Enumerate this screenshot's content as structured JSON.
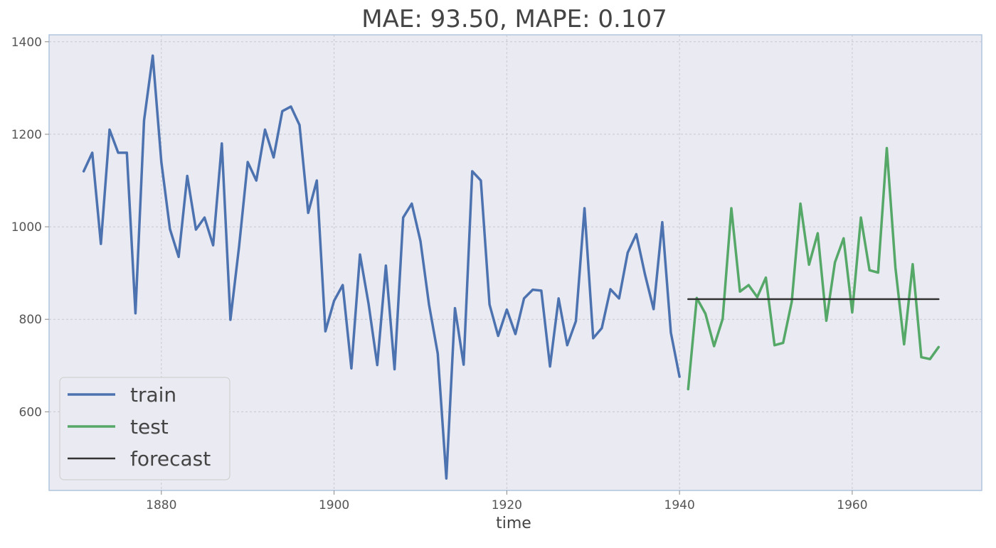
{
  "chart_data": {
    "type": "line",
    "title": "MAE: 93.50, MAPE: 0.107",
    "xlabel": "time",
    "ylabel": "",
    "xlim": [
      1867,
      1975
    ],
    "ylim": [
      430,
      1415
    ],
    "xticks": [
      1880,
      1900,
      1920,
      1940,
      1960
    ],
    "yticks": [
      600,
      800,
      1000,
      1200,
      1400
    ],
    "grid": true,
    "legend_position": "bottom-left",
    "series": [
      {
        "name": "train",
        "color": "#4c72b0",
        "x": [
          1871,
          1872,
          1873,
          1874,
          1875,
          1876,
          1877,
          1878,
          1879,
          1880,
          1881,
          1882,
          1883,
          1884,
          1885,
          1886,
          1887,
          1888,
          1889,
          1890,
          1891,
          1892,
          1893,
          1894,
          1895,
          1896,
          1897,
          1898,
          1899,
          1900,
          1901,
          1902,
          1903,
          1904,
          1905,
          1906,
          1907,
          1908,
          1909,
          1910,
          1911,
          1912,
          1913,
          1914,
          1915,
          1916,
          1917,
          1918,
          1919,
          1920,
          1921,
          1922,
          1923,
          1924,
          1925,
          1926,
          1927,
          1928,
          1929,
          1930,
          1931,
          1932,
          1933,
          1934,
          1935,
          1936,
          1937,
          1938,
          1939,
          1940
        ],
        "y": [
          1120,
          1160,
          963,
          1210,
          1160,
          1160,
          813,
          1230,
          1370,
          1140,
          995,
          935,
          1110,
          994,
          1020,
          960,
          1180,
          799,
          958,
          1140,
          1100,
          1210,
          1150,
          1250,
          1260,
          1220,
          1030,
          1100,
          774,
          840,
          874,
          694,
          940,
          833,
          701,
          916,
          692,
          1020,
          1050,
          969,
          831,
          726,
          456,
          824,
          702,
          1120,
          1100,
          832,
          764,
          821,
          768,
          845,
          864,
          862,
          698,
          845,
          744,
          796,
          1040,
          759,
          781,
          865,
          845,
          944,
          984,
          897,
          822,
          1010,
          771,
          676
        ]
      },
      {
        "name": "test",
        "color": "#55a868",
        "x": [
          1941,
          1942,
          1943,
          1944,
          1945,
          1946,
          1947,
          1948,
          1949,
          1950,
          1951,
          1952,
          1953,
          1954,
          1955,
          1956,
          1957,
          1958,
          1959,
          1960,
          1961,
          1962,
          1963,
          1964,
          1965,
          1966,
          1967,
          1968,
          1969,
          1970
        ],
        "y": [
          649,
          846,
          812,
          742,
          801,
          1040,
          860,
          874,
          848,
          890,
          744,
          749,
          838,
          1050,
          918,
          986,
          797,
          923,
          975,
          815,
          1020,
          906,
          901,
          1170,
          912,
          746,
          919,
          718,
          714,
          740
        ]
      },
      {
        "name": "forecast",
        "color": "#333333",
        "x": [
          1941,
          1970
        ],
        "y": [
          843.5,
          843.5
        ]
      }
    ]
  }
}
